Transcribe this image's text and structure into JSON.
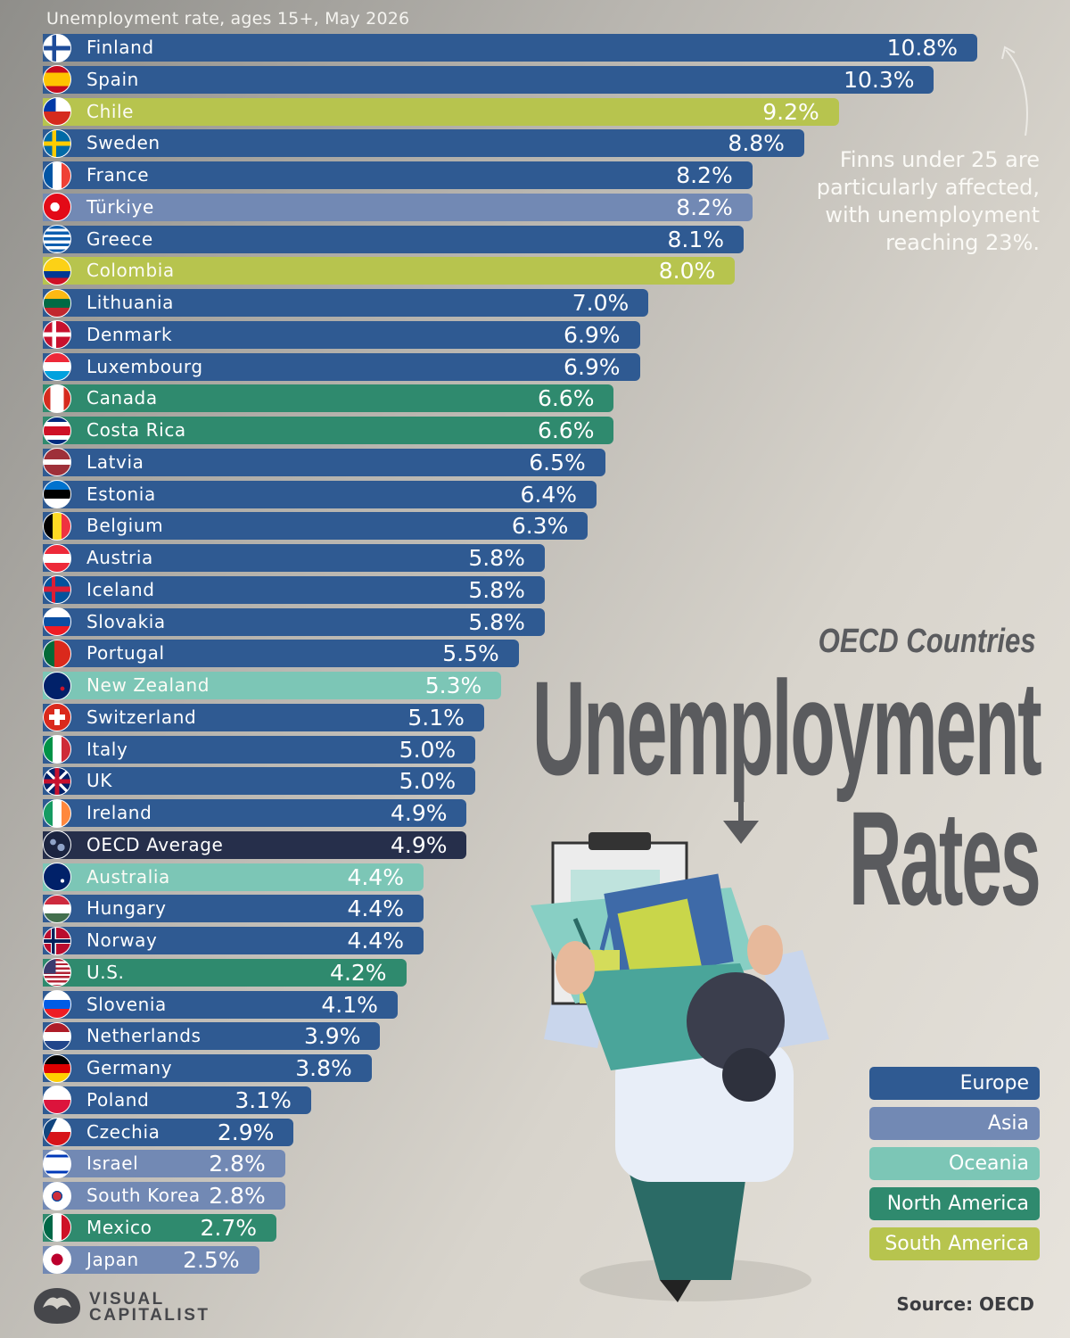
{
  "chart_data": {
    "type": "bar",
    "orientation": "horizontal",
    "title": "Unemployment Rates",
    "title_kicker": "OECD Countries",
    "subtitle": "Unemployment rate, ages 15+, May 2026",
    "unit": "%",
    "categories": [
      "Finland",
      "Spain",
      "Chile",
      "Sweden",
      "France",
      "Türkiye",
      "Greece",
      "Colombia",
      "Lithuania",
      "Denmark",
      "Luxembourg",
      "Canada",
      "Costa Rica",
      "Latvia",
      "Estonia",
      "Belgium",
      "Austria",
      "Iceland",
      "Slovakia",
      "Portugal",
      "New Zealand",
      "Switzerland",
      "Italy",
      "UK",
      "Ireland",
      "OECD Average",
      "Australia",
      "Hungary",
      "Norway",
      "U.S.",
      "Slovenia",
      "Netherlands",
      "Germany",
      "Poland",
      "Czechia",
      "Israel",
      "South Korea",
      "Mexico",
      "Japan"
    ],
    "values": [
      10.8,
      10.3,
      9.2,
      8.8,
      8.2,
      8.2,
      8.1,
      8.0,
      7.0,
      6.9,
      6.9,
      6.6,
      6.6,
      6.5,
      6.4,
      6.3,
      5.8,
      5.8,
      5.8,
      5.5,
      5.3,
      5.1,
      5.0,
      5.0,
      4.9,
      4.9,
      4.4,
      4.4,
      4.4,
      4.2,
      4.1,
      3.9,
      3.8,
      3.1,
      2.9,
      2.8,
      2.8,
      2.7,
      2.5
    ],
    "value_labels": [
      "10.8%",
      "10.3%",
      "9.2%",
      "8.8%",
      "8.2%",
      "8.2%",
      "8.1%",
      "8.0%",
      "7.0%",
      "6.9%",
      "6.9%",
      "6.6%",
      "6.6%",
      "6.5%",
      "6.4%",
      "6.3%",
      "5.8%",
      "5.8%",
      "5.8%",
      "5.5%",
      "5.3%",
      "5.1%",
      "5.0%",
      "5.0%",
      "4.9%",
      "4.9%",
      "4.4%",
      "4.4%",
      "4.4%",
      "4.2%",
      "4.1%",
      "3.9%",
      "3.8%",
      "3.1%",
      "2.9%",
      "2.8%",
      "2.8%",
      "2.7%",
      "2.5%"
    ],
    "regions": [
      "Europe",
      "Europe",
      "South America",
      "Europe",
      "Europe",
      "Asia",
      "Europe",
      "South America",
      "Europe",
      "Europe",
      "Europe",
      "North America",
      "North America",
      "Europe",
      "Europe",
      "Europe",
      "Europe",
      "Europe",
      "Europe",
      "Europe",
      "Oceania",
      "Europe",
      "Europe",
      "Europe",
      "Europe",
      "OECD",
      "Oceania",
      "Europe",
      "Europe",
      "North America",
      "Europe",
      "Europe",
      "Europe",
      "Europe",
      "Europe",
      "Asia",
      "Asia",
      "North America",
      "Asia"
    ],
    "legend": {
      "placement": "bottom-right",
      "entries": [
        {
          "name": "Europe",
          "color": "#2f5a92"
        },
        {
          "name": "Asia",
          "color": "#7289b4"
        },
        {
          "name": "Oceania",
          "color": "#7cc6b6"
        },
        {
          "name": "North America",
          "color": "#2f8a6e"
        },
        {
          "name": "South America",
          "color": "#b7c44e"
        }
      ]
    },
    "average_color": "#262f4b",
    "xlim": [
      0,
      10.8
    ],
    "grid": false
  },
  "annotation": "Finns under 25 are particularly affected, with unemployment reaching 23%.",
  "source": "Source: OECD",
  "brand": {
    "line1": "VISUAL",
    "line2": "CAPITALIST"
  },
  "icons": [
    "flag-icons",
    "arrow-icon",
    "down-arrow-icon",
    "box-carrier-illustration",
    "visual-capitalist-logo-icon"
  ]
}
